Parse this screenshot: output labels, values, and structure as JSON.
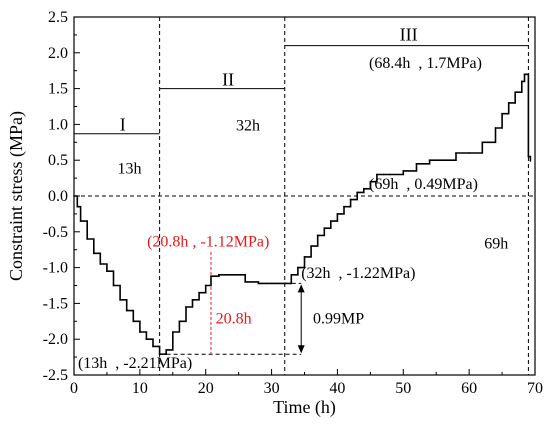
{
  "chart_data": {
    "type": "line",
    "xlabel": "Time (h)",
    "ylabel": "Constraint stress (MPa)",
    "xlim": [
      0,
      70
    ],
    "ylim": [
      -2.5,
      2.5
    ],
    "x_ticks": [
      "0",
      "10",
      "20",
      "30",
      "40",
      "50",
      "60",
      "70"
    ],
    "y_ticks": [
      "2.5",
      "2.0",
      "1.5",
      "1.0",
      "0.5",
      "0.0",
      "-0.5",
      "-1.0",
      "-1.5",
      "-2.0",
      "-2.5"
    ],
    "grid": false,
    "series": [
      {
        "color": "#000000",
        "x": [
          0,
          0.5,
          1,
          2,
          3,
          4,
          5,
          6,
          7,
          8,
          9,
          10,
          11,
          12,
          13,
          14,
          15,
          16,
          17,
          18,
          19,
          20,
          20.8,
          22,
          23,
          24,
          25,
          26,
          28,
          30,
          32,
          33,
          34,
          35,
          36,
          37,
          38,
          39,
          40,
          41,
          42,
          43,
          44,
          45,
          46,
          47,
          48,
          50,
          52,
          54,
          56,
          58,
          60,
          62,
          64,
          65,
          66,
          67,
          68,
          68.4,
          68.7,
          69,
          69.3
        ],
        "y": [
          0.0,
          -0.15,
          -0.35,
          -0.6,
          -0.8,
          -0.95,
          -1.05,
          -1.25,
          -1.45,
          -1.6,
          -1.75,
          -1.9,
          -2.0,
          -2.1,
          -2.21,
          -2.15,
          -1.9,
          -1.75,
          -1.55,
          -1.45,
          -1.35,
          -1.25,
          -1.12,
          -1.1,
          -1.1,
          -1.1,
          -1.1,
          -1.2,
          -1.22,
          -1.22,
          -1.22,
          -1.1,
          -1.0,
          -0.85,
          -0.7,
          -0.55,
          -0.45,
          -0.35,
          -0.25,
          -0.15,
          -0.05,
          0.05,
          0.1,
          0.2,
          0.3,
          0.3,
          0.3,
          0.35,
          0.45,
          0.5,
          0.5,
          0.6,
          0.6,
          0.75,
          0.95,
          1.15,
          1.3,
          1.45,
          1.6,
          1.7,
          1.7,
          0.55,
          0.49
        ]
      }
    ],
    "phases": [
      {
        "label": "I",
        "x_start": 0,
        "x_end": 13,
        "y": 0.87
      },
      {
        "label": "II",
        "x_start": 13,
        "x_end": 32,
        "y": 1.5
      },
      {
        "label": "III",
        "x_start": 32,
        "x_end": 69,
        "y": 2.1
      }
    ],
    "vertical_lines": [
      13,
      32,
      69
    ],
    "time_labels": [
      "13h",
      "32h",
      "69h",
      "20.8h"
    ],
    "annotations": {
      "min_point": "(13h  , -2.21MPa)",
      "red_point": "(20.8h , -1.12MPa)",
      "point_32h": "(32h  , -1.22MPa)",
      "diff": "0.99MP",
      "point_69h": "(69h  , 0.49MPa)",
      "peak": "(68.4h  , 1.7MPa)"
    },
    "colors": {
      "main": "#000000",
      "highlight": "#e41a1c"
    }
  }
}
